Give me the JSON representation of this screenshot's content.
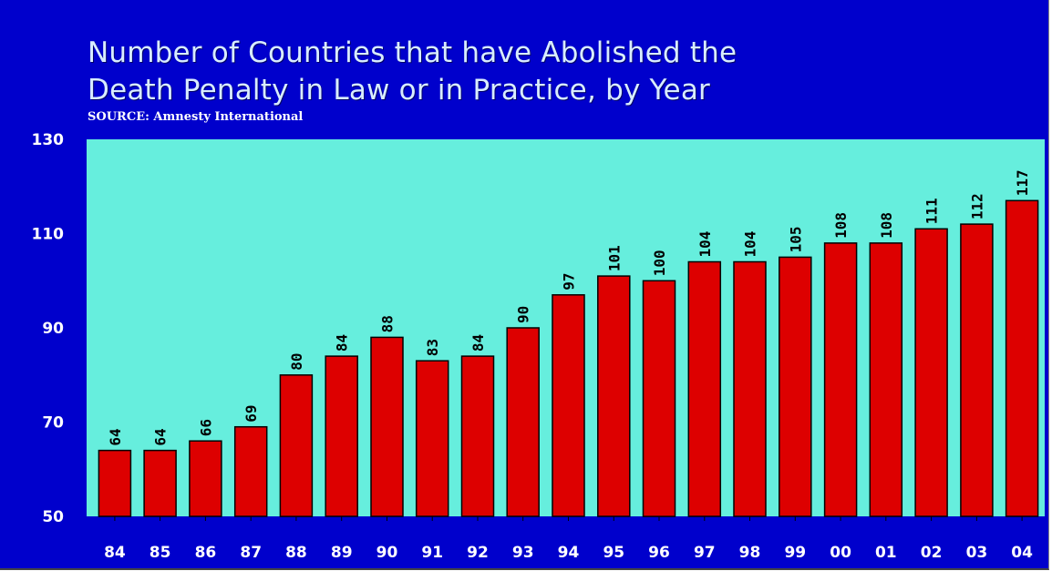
{
  "chart_data": {
    "type": "bar",
    "title": "Number of Countries that have Abolished the Death Penalty in Law or in Practice, by Year",
    "title_lines": [
      "Number of Countries that have Abolished the",
      "Death Penalty in Law or in Practice, by Year"
    ],
    "source": "SOURCE: Amnesty International",
    "categories": [
      "84",
      "85",
      "86",
      "87",
      "88",
      "89",
      "90",
      "91",
      "92",
      "93",
      "94",
      "95",
      "96",
      "97",
      "98",
      "99",
      "00",
      "01",
      "02",
      "03",
      "04"
    ],
    "values": [
      64,
      64,
      66,
      69,
      80,
      84,
      88,
      83,
      84,
      90,
      97,
      101,
      100,
      104,
      104,
      105,
      108,
      108,
      111,
      112,
      117
    ],
    "ylim": [
      50,
      130
    ],
    "yticks": [
      50,
      70,
      90,
      110,
      130
    ],
    "grid": false,
    "xlabel": "",
    "ylabel": "",
    "colors": {
      "background": "#0000cc",
      "plot_area": "#66eedd",
      "bar": "#dd0000",
      "bar_edge": "#000000",
      "title": "#d8ecff",
      "tick_text": "#ffffff",
      "data_label": "#000000"
    }
  }
}
